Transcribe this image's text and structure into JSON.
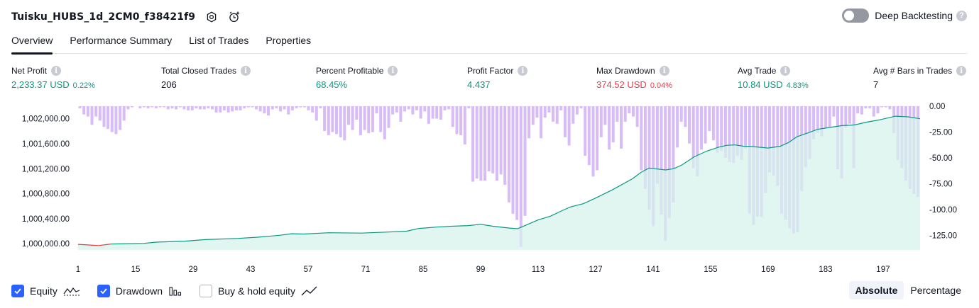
{
  "header": {
    "title": "Tuisku_HUBS_1d_2CM0_f38421f9",
    "settings_icon": "gear-icon",
    "alert_icon": "alarm-add-icon",
    "deep_backtesting_label": "Deep Backtesting",
    "deep_backtesting_on": false,
    "help_mark": "?"
  },
  "tabs": [
    {
      "label": "Overview",
      "active": true
    },
    {
      "label": "Performance Summary",
      "active": false
    },
    {
      "label": "List of Trades",
      "active": false
    },
    {
      "label": "Properties",
      "active": false
    }
  ],
  "metrics": {
    "net_profit": {
      "label": "Net Profit",
      "value": "2,233.37 USD",
      "pct": "0.22%"
    },
    "total_closed_trades": {
      "label": "Total Closed Trades",
      "value": "206"
    },
    "percent_profitable": {
      "label": "Percent Profitable",
      "value": "68.45%"
    },
    "profit_factor": {
      "label": "Profit Factor",
      "value": "4.437"
    },
    "max_drawdown": {
      "label": "Max Drawdown",
      "value": "374.52 USD",
      "pct": "0.04%"
    },
    "avg_trade": {
      "label": "Avg Trade",
      "value": "10.84 USD",
      "pct": "4.83%"
    },
    "avg_bars": {
      "label": "Avg # Bars in Trades",
      "value": "7"
    },
    "info_mark": "i"
  },
  "chart_data": {
    "type": "line",
    "left_axis_ticks": [
      "1,002,000.00",
      "1,001,600.00",
      "1,001,200.00",
      "1,000,800.00",
      "1,000,400.00",
      "1,000,000.00"
    ],
    "left_axis_values": [
      1002000,
      1001600,
      1001200,
      1000800,
      1000400,
      1000000
    ],
    "right_axis_ticks": [
      "0.00",
      "-25.00",
      "-50.00",
      "-75.00",
      "-100.00",
      "-125.00"
    ],
    "right_axis_values": [
      0,
      -25,
      -50,
      -75,
      -100,
      -125
    ],
    "x_ticks": [
      "1",
      "15",
      "29",
      "43",
      "57",
      "71",
      "85",
      "99",
      "113",
      "127",
      "141",
      "155",
      "169",
      "183",
      "197"
    ],
    "x_range": [
      1,
      206
    ],
    "equity_range": [
      999900,
      1002200
    ],
    "drawdown_range": [
      -139,
      0
    ],
    "equity_points": [
      [
        1,
        999990
      ],
      [
        6,
        999970
      ],
      [
        9,
        999995
      ],
      [
        17,
        1000005
      ],
      [
        20,
        1000025
      ],
      [
        27,
        1000040
      ],
      [
        32,
        1000065
      ],
      [
        40,
        1000085
      ],
      [
        45,
        1000105
      ],
      [
        50,
        1000135
      ],
      [
        53,
        1000160
      ],
      [
        56,
        1000155
      ],
      [
        62,
        1000175
      ],
      [
        70,
        1000170
      ],
      [
        76,
        1000185
      ],
      [
        81,
        1000200
      ],
      [
        84,
        1000245
      ],
      [
        88,
        1000265
      ],
      [
        92,
        1000280
      ],
      [
        96,
        1000290
      ],
      [
        99,
        1000310
      ],
      [
        102,
        1000280
      ],
      [
        106,
        1000250
      ],
      [
        108,
        1000240
      ],
      [
        110,
        1000295
      ],
      [
        113,
        1000380
      ],
      [
        116,
        1000440
      ],
      [
        119,
        1000535
      ],
      [
        121,
        1000590
      ],
      [
        124,
        1000640
      ],
      [
        127,
        1000730
      ],
      [
        131,
        1000860
      ],
      [
        136,
        1001040
      ],
      [
        138,
        1001140
      ],
      [
        140,
        1001210
      ],
      [
        142,
        1001195
      ],
      [
        144,
        1001180
      ],
      [
        146,
        1001200
      ],
      [
        148,
        1001260
      ],
      [
        151,
        1001390
      ],
      [
        154,
        1001480
      ],
      [
        157,
        1001545
      ],
      [
        159,
        1001575
      ],
      [
        161,
        1001580
      ],
      [
        163,
        1001560
      ],
      [
        165,
        1001555
      ],
      [
        169,
        1001530
      ],
      [
        172,
        1001560
      ],
      [
        174,
        1001620
      ],
      [
        176,
        1001710
      ],
      [
        179,
        1001780
      ],
      [
        181,
        1001830
      ],
      [
        184,
        1001860
      ],
      [
        187,
        1001890
      ],
      [
        190,
        1001900
      ],
      [
        193,
        1001945
      ],
      [
        196,
        1001980
      ],
      [
        200,
        1002040
      ],
      [
        203,
        1002030
      ],
      [
        206,
        1002000
      ]
    ],
    "drawdown_bars": [
      -2,
      -8,
      -10,
      -18,
      -10,
      -14,
      -20,
      -22,
      -25,
      -27,
      -23,
      -14,
      -3,
      -1,
      0,
      -2,
      -1,
      -2,
      -1,
      -2,
      -1,
      -1,
      -3,
      -2,
      -3,
      -1,
      -3,
      -4,
      -4,
      -2,
      -3,
      -3,
      -2,
      -3,
      -6,
      -6,
      -4,
      -6,
      -5,
      -4,
      -4,
      -2,
      -1,
      -1,
      -3,
      -5,
      -7,
      -9,
      -3,
      -2,
      -5,
      -3,
      -8,
      -4,
      -2,
      -1,
      -1,
      -4,
      -6,
      -14,
      -2,
      -24,
      -28,
      -25,
      -27,
      -30,
      -33,
      -18,
      -23,
      -13,
      -28,
      -23,
      -26,
      -25,
      -7,
      -25,
      -32,
      -21,
      -8,
      -6,
      -15,
      -5,
      -3,
      -8,
      -4,
      -12,
      -5,
      -17,
      -12,
      -12,
      -13,
      -4,
      -3,
      -20,
      -27,
      -28,
      -37,
      -2,
      -73,
      -70,
      -72,
      -72,
      -63,
      -65,
      -72,
      -66,
      -76,
      -93,
      -104,
      -110,
      -136,
      -106,
      -31,
      -18,
      -11,
      -31,
      -11,
      -6,
      -15,
      -17,
      -4,
      -30,
      -38,
      -17,
      -8,
      -2,
      -48,
      -57,
      -68,
      -62,
      -30,
      -18,
      -42,
      -35,
      -15,
      -41,
      -15,
      -7,
      -10,
      -20,
      -62,
      -80,
      -100,
      -116,
      -75,
      -105,
      -130,
      -108,
      -93,
      -40,
      -15,
      -20,
      -36,
      -60,
      -68,
      -42,
      -36,
      -24,
      -33,
      -45,
      -43,
      -50,
      -54,
      -55,
      -48,
      -52,
      -41,
      -104,
      -115,
      -107,
      -107,
      -84,
      -64,
      -67,
      -77,
      -104,
      -110,
      -118,
      -123,
      -122,
      -82,
      -59,
      -51,
      -32,
      -26,
      -29,
      -21,
      -20,
      -10,
      -61,
      -70,
      -21,
      -17,
      -60,
      -7,
      -8,
      -2,
      -2,
      -10,
      -7,
      -1,
      -1,
      -3,
      -26,
      -52,
      -60,
      -72,
      -80,
      -85,
      -88
    ]
  },
  "legend": {
    "equity": {
      "label": "Equity",
      "checked": true
    },
    "drawdown": {
      "label": "Drawdown",
      "checked": true
    },
    "buy_hold": {
      "label": "Buy & hold equity",
      "checked": false
    }
  },
  "mode_toggle": [
    {
      "label": "Absolute",
      "active": true
    },
    {
      "label": "Percentage",
      "active": false
    }
  ],
  "colors": {
    "equity_line": "#089981",
    "equity_loss_line": "#f23645",
    "equity_fill": "#d7f2ec",
    "drawdown_bar": "#d5b8f8",
    "drawdown_overlap": "#b3a3e8",
    "checkbox_on": "#2962ff"
  }
}
